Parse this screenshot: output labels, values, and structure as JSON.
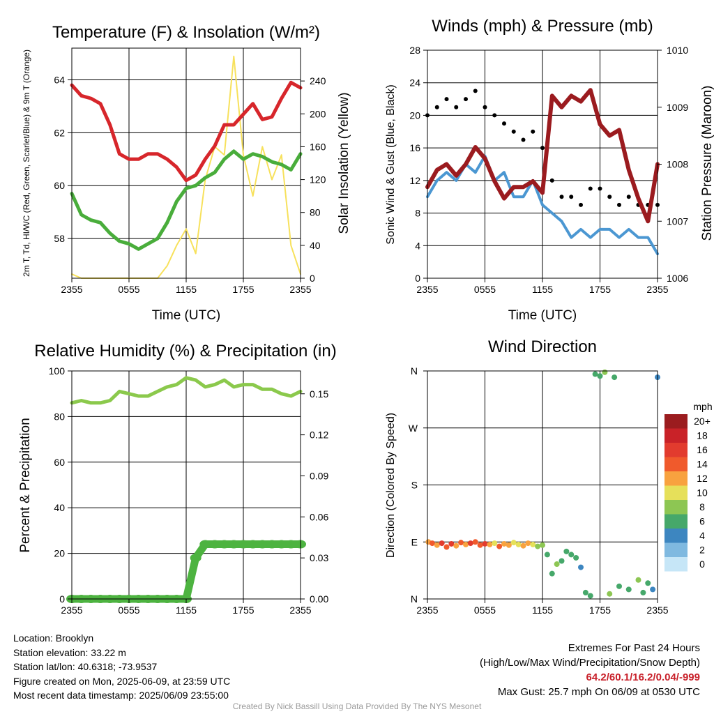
{
  "colors": {
    "red": "#d7262b",
    "green": "#49ad3b",
    "yellow": "#f7e15c",
    "blue_wind": "#4b97d2",
    "gust_black": "#000000",
    "pressure_maroon": "#9b1b1f",
    "rh_green": "#8bc94c",
    "precip_green": "#4db340"
  },
  "footer": {
    "location": "Location: Brooklyn",
    "elevation": "Station elevation: 33.22 m",
    "latlon": "Station lat/lon: 40.6318; -73.9537",
    "created": "Figure created on Mon, 2025-06-09, at 23:59 UTC",
    "recent": "Most recent data timestamp: 2025/06/09 23:55:00",
    "extremes_title": "Extremes For Past 24 Hours",
    "extremes_legend": "(High/Low/Max Wind/Precipitation/Snow Depth)",
    "extremes_values": "64.2/60.1/16.2/0.04/-999",
    "max_gust": "Max Gust: 25.7 mph On 06/09 at 0530 UTC",
    "credit": "Created By Nick Bassill Using Data Provided By The NYS Mesonet"
  },
  "chart_data": [
    {
      "type": "line",
      "title": "Temperature (F) & Insolation (W/m²)",
      "xlabel": "Time (UTC)",
      "ylabel": "2m T, Td, HI/WC (Red, Green, Scarlet/Blue) & 9m T (Orange)",
      "ylabel2": "Solar Insolation (Yellow)",
      "x_ticks": [
        "2355",
        "0555",
        "1155",
        "1755",
        "2355"
      ],
      "ylim": [
        56.5,
        65.2
      ],
      "y_ticks": [
        "58",
        "60",
        "62",
        "64"
      ],
      "y2lim": [
        0,
        280
      ],
      "y2_ticks": [
        "0",
        "40",
        "80",
        "120",
        "160",
        "200",
        "240"
      ],
      "grid": true,
      "x": [
        0,
        1,
        2,
        3,
        4,
        5,
        6,
        7,
        8,
        9,
        10,
        11,
        12,
        13,
        14,
        15,
        16,
        17,
        18,
        19,
        20,
        21,
        22,
        23,
        24
      ],
      "series": [
        {
          "role": "temperature",
          "axis": "left",
          "color_key": "red",
          "values": [
            63.8,
            63.4,
            63.3,
            63.1,
            62.3,
            61.2,
            61.0,
            61.0,
            61.2,
            61.2,
            61.0,
            60.7,
            60.2,
            60.4,
            61.0,
            61.5,
            62.3,
            62.3,
            62.7,
            63.1,
            62.5,
            62.6,
            63.3,
            63.9,
            63.7
          ]
        },
        {
          "role": "dewpoint",
          "axis": "left",
          "color_key": "green",
          "values": [
            59.7,
            58.9,
            58.7,
            58.6,
            58.2,
            57.9,
            57.8,
            57.6,
            57.8,
            58.0,
            58.6,
            59.4,
            59.9,
            60.0,
            60.3,
            60.5,
            61.0,
            61.3,
            61.0,
            61.2,
            61.1,
            60.9,
            60.8,
            60.6,
            61.2
          ]
        },
        {
          "role": "insolation",
          "axis": "right",
          "color_key": "yellow",
          "values": [
            5,
            0,
            0,
            0,
            0,
            0,
            0,
            0,
            0,
            0,
            15,
            40,
            60,
            30,
            120,
            160,
            150,
            270,
            150,
            100,
            160,
            120,
            150,
            40,
            5
          ]
        }
      ]
    },
    {
      "type": "line",
      "title": "Winds (mph) & Pressure (mb)",
      "xlabel": "Time (UTC)",
      "ylabel": "Sonic Wind & Gust (Blue, Black)",
      "ylabel2": "Station Pressure (Maroon)",
      "x_ticks": [
        "2355",
        "0555",
        "1155",
        "1755",
        "2355"
      ],
      "ylim": [
        0,
        28
      ],
      "y_ticks": [
        "0",
        "4",
        "8",
        "12",
        "16",
        "20",
        "24",
        "28"
      ],
      "y2lim": [
        1006,
        1010
      ],
      "y2_ticks": [
        "1006",
        "1007",
        "1008",
        "1009",
        "1010"
      ],
      "grid": true,
      "x": [
        0,
        1,
        2,
        3,
        4,
        5,
        6,
        7,
        8,
        9,
        10,
        11,
        12,
        13,
        14,
        15,
        16,
        17,
        18,
        19,
        20,
        21,
        22,
        23,
        24
      ],
      "series": [
        {
          "role": "wind",
          "axis": "left",
          "color_key": "blue_wind",
          "values": [
            10,
            12,
            13,
            12,
            14,
            13,
            15,
            12,
            13,
            10,
            10,
            12,
            9,
            8,
            7,
            5,
            6,
            5,
            6,
            6,
            5,
            6,
            5,
            5,
            3
          ]
        },
        {
          "role": "gust",
          "axis": "left",
          "color_key": "gust_black",
          "marker": "dot",
          "values": [
            20,
            21,
            22,
            21,
            22,
            23,
            21,
            20,
            19,
            18,
            17,
            18,
            16,
            12,
            10,
            10,
            9,
            11,
            11,
            10,
            9,
            10,
            9,
            9,
            9
          ]
        },
        {
          "role": "pressure",
          "axis": "right",
          "color_key": "pressure_maroon",
          "values": [
            1007.6,
            1007.9,
            1008.0,
            1007.8,
            1008.0,
            1008.3,
            1008.1,
            1007.7,
            1007.4,
            1007.6,
            1007.6,
            1007.7,
            1007.5,
            1009.2,
            1009.0,
            1009.2,
            1009.1,
            1009.3,
            1008.7,
            1008.5,
            1008.6,
            1007.9,
            1007.4,
            1007.0,
            1008.0
          ]
        }
      ]
    },
    {
      "type": "line",
      "title": "Relative Humidity (%) & Precipitation (in)",
      "xlabel": "",
      "ylabel": "Percent & Precipitation",
      "x_ticks": [
        "2355",
        "0555",
        "1155",
        "1755",
        "2355"
      ],
      "ylim": [
        0,
        100
      ],
      "y_ticks": [
        "0",
        "20",
        "40",
        "60",
        "80",
        "100"
      ],
      "y2lim": [
        0,
        0.1667
      ],
      "y2_ticks": [
        "0.00",
        "0.03",
        "0.06",
        "0.09",
        "0.12",
        "0.15"
      ],
      "grid": true,
      "x": [
        0,
        1,
        2,
        3,
        4,
        5,
        6,
        7,
        8,
        9,
        10,
        11,
        12,
        13,
        14,
        15,
        16,
        17,
        18,
        19,
        20,
        21,
        22,
        23,
        24
      ],
      "series": [
        {
          "role": "humidity",
          "axis": "left",
          "color_key": "rh_green",
          "values": [
            86,
            87,
            86,
            86,
            87,
            91,
            90,
            89,
            89,
            91,
            93,
            94,
            97,
            96,
            93,
            94,
            96,
            93,
            94,
            94,
            92,
            92,
            90,
            89,
            91
          ]
        },
        {
          "role": "precipitation",
          "axis": "right",
          "color_key": "precip_green",
          "values": [
            0,
            0,
            0,
            0,
            0,
            0,
            0,
            0,
            0,
            0,
            0,
            0,
            0,
            0.03,
            0.04,
            0.04,
            0.04,
            0.04,
            0.04,
            0.04,
            0.04,
            0.04,
            0.04,
            0.04,
            0.04
          ]
        }
      ]
    },
    {
      "type": "scatter",
      "title": "Wind Direction",
      "ylabel": "Direction (Colored By Speed)",
      "x_ticks": [
        "2355",
        "0555",
        "1155",
        "1755",
        "2355"
      ],
      "y_ticks": [
        "N",
        "E",
        "S",
        "W",
        "N"
      ],
      "ylim": [
        0,
        360
      ],
      "grid": true,
      "legend": {
        "title": "mph",
        "labels": [
          "20+",
          "18",
          "16",
          "14",
          "12",
          "10",
          "8",
          "6",
          "4",
          "2",
          "0"
        ],
        "colors": [
          "#9b1c1f",
          "#c92228",
          "#e23b2e",
          "#f05a2c",
          "#f8a23f",
          "#e6e05a",
          "#8dc653",
          "#46a86a",
          "#3d86c0",
          "#7fb9e0",
          "#c6e6f7"
        ]
      },
      "points": [
        {
          "x": 0.1,
          "dir": 90,
          "speed": 12
        },
        {
          "x": 0.5,
          "dir": 88,
          "speed": 14
        },
        {
          "x": 1.0,
          "dir": 85,
          "speed": 11
        },
        {
          "x": 1.5,
          "dir": 88,
          "speed": 15
        },
        {
          "x": 2.0,
          "dir": 82,
          "speed": 13
        },
        {
          "x": 2.5,
          "dir": 87,
          "speed": 16
        },
        {
          "x": 3.0,
          "dir": 84,
          "speed": 12
        },
        {
          "x": 3.5,
          "dir": 89,
          "speed": 14
        },
        {
          "x": 4.0,
          "dir": 86,
          "speed": 12
        },
        {
          "x": 4.5,
          "dir": 88,
          "speed": 16
        },
        {
          "x": 5.0,
          "dir": 90,
          "speed": 14
        },
        {
          "x": 5.5,
          "dir": 85,
          "speed": 13
        },
        {
          "x": 6.0,
          "dir": 87,
          "speed": 15
        },
        {
          "x": 6.5,
          "dir": 86,
          "speed": 12
        },
        {
          "x": 7.0,
          "dir": 88,
          "speed": 10
        },
        {
          "x": 7.5,
          "dir": 83,
          "speed": 14
        },
        {
          "x": 8.0,
          "dir": 87,
          "speed": 12
        },
        {
          "x": 8.5,
          "dir": 85,
          "speed": 11
        },
        {
          "x": 9.0,
          "dir": 89,
          "speed": 9
        },
        {
          "x": 9.5,
          "dir": 86,
          "speed": 10
        },
        {
          "x": 10.0,
          "dir": 84,
          "speed": 12
        },
        {
          "x": 10.5,
          "dir": 88,
          "speed": 11
        },
        {
          "x": 11.0,
          "dir": 86,
          "speed": 10
        },
        {
          "x": 11.5,
          "dir": 83,
          "speed": 8
        },
        {
          "x": 12.0,
          "dir": 85,
          "speed": 7
        },
        {
          "x": 12.5,
          "dir": 70,
          "speed": 6
        },
        {
          "x": 13.0,
          "dir": 40,
          "speed": 6
        },
        {
          "x": 13.5,
          "dir": 55,
          "speed": 7
        },
        {
          "x": 14.0,
          "dir": 60,
          "speed": 5
        },
        {
          "x": 14.5,
          "dir": 75,
          "speed": 6
        },
        {
          "x": 15.0,
          "dir": 70,
          "speed": 5
        },
        {
          "x": 15.5,
          "dir": 65,
          "speed": 6
        },
        {
          "x": 16.0,
          "dir": 50,
          "speed": 4
        },
        {
          "x": 16.5,
          "dir": 10,
          "speed": 5
        },
        {
          "x": 17.0,
          "dir": 5,
          "speed": 6
        },
        {
          "x": 17.5,
          "dir": 355,
          "speed": 6
        },
        {
          "x": 18.0,
          "dir": 352,
          "speed": 5
        },
        {
          "x": 18.5,
          "dir": 358,
          "speed": 7
        },
        {
          "x": 19.0,
          "dir": 8,
          "speed": 7
        },
        {
          "x": 19.5,
          "dir": 350,
          "speed": 6
        },
        {
          "x": 20.0,
          "dir": 20,
          "speed": 5
        },
        {
          "x": 21.0,
          "dir": 15,
          "speed": 6
        },
        {
          "x": 22.0,
          "dir": 30,
          "speed": 7
        },
        {
          "x": 22.5,
          "dir": 10,
          "speed": 6
        },
        {
          "x": 23.0,
          "dir": 25,
          "speed": 5
        },
        {
          "x": 23.5,
          "dir": 15,
          "speed": 4
        },
        {
          "x": 24.0,
          "dir": 350,
          "speed": 4
        }
      ]
    }
  ]
}
